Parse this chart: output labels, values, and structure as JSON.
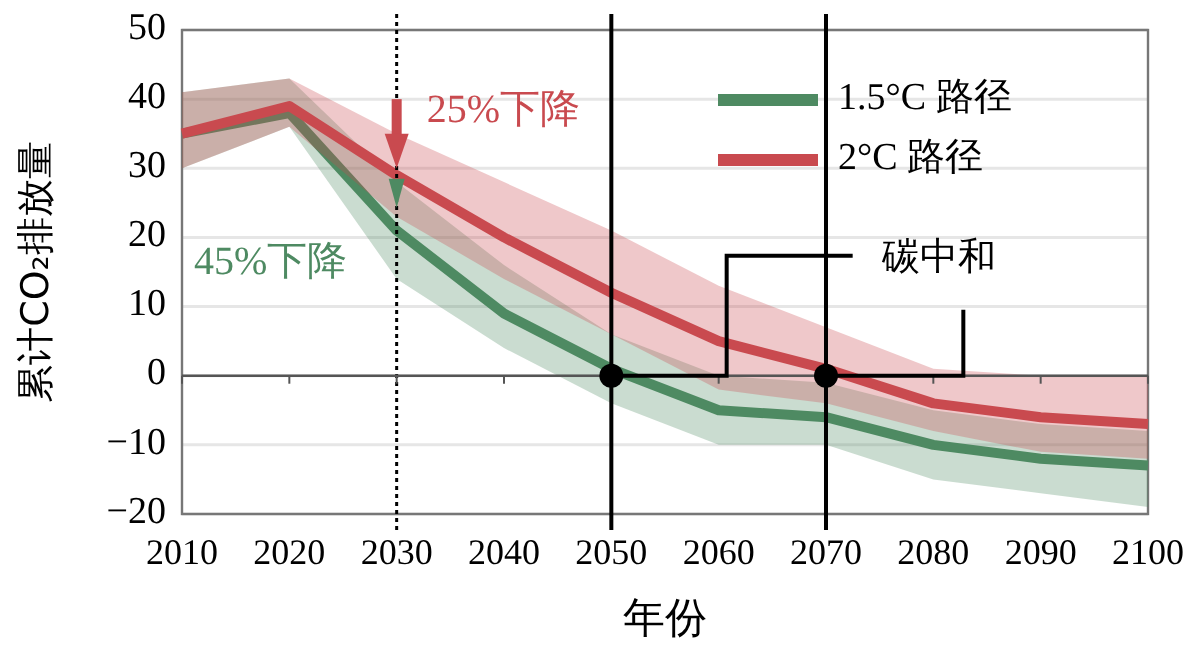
{
  "chart_data": {
    "type": "line",
    "xlabel": "年份",
    "ylabel": "累计CO₂排放量",
    "x": [
      2010,
      2020,
      2030,
      2040,
      2050,
      2060,
      2070,
      2080,
      2090,
      2100
    ],
    "xlim": [
      2010,
      2100
    ],
    "xticks": [
      2010,
      2020,
      2030,
      2040,
      2050,
      2060,
      2070,
      2080,
      2090,
      2100
    ],
    "ylim": [
      -20,
      50
    ],
    "yticks": [
      -20,
      -10,
      0,
      10,
      20,
      30,
      40,
      50
    ],
    "grid": "y",
    "legend": "top right",
    "series": [
      {
        "name": "1.5°C 路径",
        "color": "#4e8a62",
        "values": [
          35,
          38,
          21,
          9,
          1,
          -5,
          -6,
          -10,
          -12,
          -13
        ],
        "lower": [
          30,
          36,
          14,
          4,
          -4,
          -10,
          -10,
          -15,
          -17,
          -19
        ],
        "upper": [
          41,
          43,
          28,
          16,
          6,
          0,
          -1,
          -5,
          -7,
          -8
        ]
      },
      {
        "name": "2°C 路径",
        "color": "#c94a4f",
        "values": [
          35,
          39,
          29,
          20,
          12,
          5,
          1,
          -4,
          -6,
          -7
        ],
        "lower": [
          30,
          36,
          23,
          14,
          6,
          -2,
          -4,
          -8,
          -11,
          -12
        ],
        "upper": [
          41,
          43,
          35,
          28,
          21,
          13,
          7,
          1,
          0,
          0
        ]
      },
      {
        "type": "scatter",
        "color": "#000000",
        "x": [
          2050,
          2070
        ],
        "values": [
          0,
          0
        ]
      }
    ],
    "ref_lines": [
      {
        "axis": "x",
        "value": 2030,
        "line_style": "dotted",
        "color": "#000000"
      },
      {
        "axis": "x",
        "value": 2050,
        "color": "#000000"
      },
      {
        "axis": "x",
        "value": 2070,
        "color": "#000000"
      },
      {
        "axis": "y",
        "value": 0,
        "color": "#555555"
      }
    ],
    "annotations": [
      "25%下降",
      "45%下降",
      {
        "text": "碳中和",
        "x": 2050,
        "y": 0
      }
    ]
  }
}
